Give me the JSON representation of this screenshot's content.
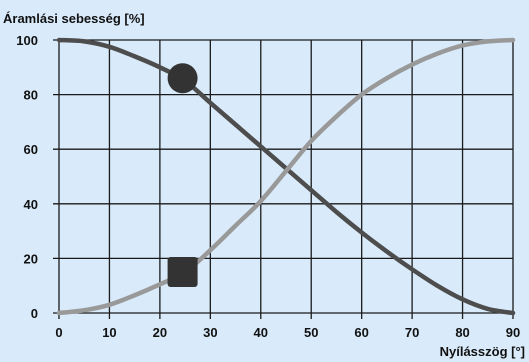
{
  "colors": {
    "background": "#d9ebfa",
    "grid": "#1a1a1a",
    "decreasing_series": "#4d4d4d",
    "increasing_series": "#999999",
    "marker": "#333333"
  },
  "chart_data": {
    "type": "line",
    "ylabel": "Áramlási sebesség [%]",
    "xlabel": "Nyílásszög [°]",
    "xlim": [
      0,
      90
    ],
    "ylim": [
      0,
      100
    ],
    "x_ticks": [
      "0",
      "10",
      "20",
      "30",
      "40",
      "50",
      "60",
      "70",
      "80",
      "90"
    ],
    "y_ticks": [
      "0",
      "20",
      "40",
      "60",
      "80",
      "100"
    ],
    "grid": true,
    "legend": "none",
    "series": [
      {
        "marker": "circle",
        "marker_at": [
          24.5,
          86
        ],
        "x": [
          0,
          5,
          10,
          15,
          20,
          25,
          30,
          35,
          40,
          45,
          50,
          55,
          60,
          65,
          70,
          75,
          80,
          85,
          90
        ],
        "values": [
          100,
          99.5,
          97.5,
          94,
          90,
          85,
          77,
          69,
          61,
          53,
          45,
          37,
          29.5,
          22.5,
          16,
          10,
          5,
          1.5,
          0
        ]
      },
      {
        "marker": "square",
        "marker_at": [
          24.5,
          15
        ],
        "x": [
          0,
          5,
          10,
          15,
          20,
          25,
          30,
          35,
          40,
          45,
          50,
          55,
          60,
          65,
          70,
          75,
          80,
          85,
          90
        ],
        "values": [
          0,
          1,
          3,
          6.5,
          10.5,
          15,
          23,
          32,
          41,
          52,
          63,
          72,
          80,
          86,
          91,
          95,
          98,
          99.5,
          100
        ]
      }
    ]
  }
}
